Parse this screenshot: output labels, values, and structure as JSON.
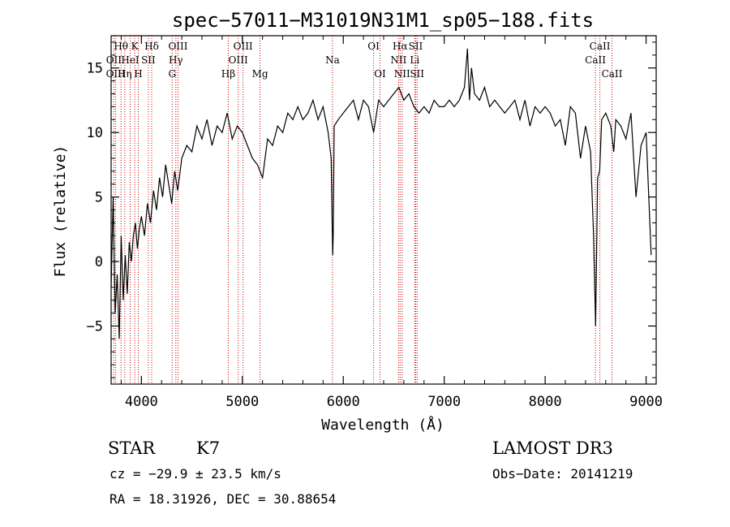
{
  "chart_data": {
    "type": "line",
    "title": "spec−57011−M31019N31M1_sp05−188.fits",
    "xlabel": "Wavelength (Å)",
    "ylabel": "Flux (relative)",
    "xlim": [
      3700,
      9100
    ],
    "ylim": [
      -9.5,
      17.5
    ],
    "x_ticks": [
      4000,
      5000,
      6000,
      7000,
      8000,
      9000
    ],
    "x_tick_labels": [
      "4000",
      "5000",
      "6000",
      "7000",
      "8000",
      "9000"
    ],
    "y_ticks": [
      -5,
      0,
      5,
      10,
      15
    ],
    "y_tick_labels": [
      "−5",
      "0",
      "5",
      "10",
      "15"
    ],
    "grid": false,
    "series": [
      {
        "name": "flux",
        "x": [
          3700,
          3720,
          3740,
          3760,
          3780,
          3800,
          3820,
          3840,
          3860,
          3880,
          3900,
          3920,
          3940,
          3960,
          3980,
          4000,
          4030,
          4060,
          4090,
          4120,
          4150,
          4180,
          4210,
          4240,
          4270,
          4300,
          4330,
          4360,
          4400,
          4450,
          4500,
          4550,
          4600,
          4650,
          4700,
          4750,
          4800,
          4850,
          4900,
          4950,
          5000,
          5050,
          5100,
          5150,
          5200,
          5250,
          5300,
          5350,
          5400,
          5450,
          5500,
          5550,
          5600,
          5650,
          5700,
          5750,
          5800,
          5850,
          5880,
          5890,
          5895,
          5900,
          5910,
          5950,
          6000,
          6050,
          6100,
          6150,
          6200,
          6250,
          6300,
          6350,
          6400,
          6450,
          6500,
          6550,
          6600,
          6650,
          6700,
          6750,
          6800,
          6850,
          6900,
          6950,
          7000,
          7050,
          7100,
          7150,
          7200,
          7230,
          7250,
          7270,
          7300,
          7350,
          7400,
          7450,
          7500,
          7550,
          7600,
          7650,
          7700,
          7750,
          7800,
          7850,
          7900,
          7950,
          8000,
          8050,
          8100,
          8150,
          8200,
          8250,
          8300,
          8350,
          8400,
          8450,
          8480,
          8500,
          8520,
          8540,
          8560,
          8600,
          8650,
          8680,
          8700,
          8750,
          8800,
          8850,
          8900,
          8950,
          9000,
          9050
        ],
        "values": [
          -2.0,
          5.0,
          -4.0,
          -1.0,
          -6.0,
          2.0,
          -3.0,
          0.5,
          -2.5,
          1.5,
          0.0,
          2.0,
          3.0,
          1.0,
          2.5,
          3.5,
          2.0,
          4.5,
          3.0,
          5.5,
          4.0,
          6.5,
          5.0,
          7.5,
          6.0,
          4.5,
          7.0,
          5.5,
          8.0,
          9.0,
          8.5,
          10.5,
          9.5,
          11.0,
          9.0,
          10.5,
          10.0,
          11.5,
          9.5,
          10.5,
          10.0,
          9.0,
          8.0,
          7.5,
          6.5,
          9.5,
          9.0,
          10.5,
          10.0,
          11.5,
          11.0,
          12.0,
          11.0,
          11.5,
          12.5,
          11.0,
          12.0,
          10.0,
          8.0,
          3.0,
          0.5,
          2.0,
          10.5,
          11.0,
          11.5,
          12.0,
          12.5,
          11.0,
          12.5,
          12.0,
          10.0,
          12.5,
          12.0,
          12.5,
          13.0,
          13.5,
          12.5,
          13.0,
          12.0,
          11.5,
          12.0,
          11.5,
          12.5,
          12.0,
          12.0,
          12.5,
          12.0,
          12.5,
          13.5,
          16.5,
          12.5,
          15.0,
          13.0,
          12.5,
          13.5,
          12.0,
          12.5,
          12.0,
          11.5,
          12.0,
          12.5,
          11.0,
          12.5,
          10.5,
          12.0,
          11.5,
          12.0,
          11.5,
          10.5,
          11.0,
          9.0,
          12.0,
          11.5,
          8.0,
          10.5,
          8.5,
          2.0,
          -5.0,
          6.5,
          7.0,
          11.0,
          11.5,
          10.5,
          8.5,
          11.0,
          10.5,
          9.5,
          11.5,
          5.0,
          9.0,
          10.0,
          0.5
        ]
      }
    ],
    "line_markers": [
      {
        "label": "Hθ",
        "x": 3798,
        "row": 1
      },
      {
        "label": "OII",
        "x": 3727,
        "row": 2
      },
      {
        "label": "OIII",
        "x": 3745,
        "row": 3
      },
      {
        "label": "Hη",
        "x": 3835,
        "row": 3
      },
      {
        "label": "HeI",
        "x": 3889,
        "row": 2
      },
      {
        "label": "K",
        "x": 3934,
        "row": 1
      },
      {
        "label": "SII",
        "x": 4069,
        "row": 2
      },
      {
        "label": "H",
        "x": 3969,
        "row": 3
      },
      {
        "label": "Hδ",
        "x": 4102,
        "row": 1
      },
      {
        "label": "OIII",
        "x": 4363,
        "row": 1
      },
      {
        "label": "Hγ",
        "x": 4341,
        "row": 2
      },
      {
        "label": "G",
        "x": 4305,
        "row": 3
      },
      {
        "label": "Hβ",
        "x": 4861,
        "row": 3
      },
      {
        "label": "OIII",
        "x": 5007,
        "row": 1
      },
      {
        "label": "OIII",
        "x": 4959,
        "row": 2
      },
      {
        "label": "Mg",
        "x": 5175,
        "row": 3
      },
      {
        "label": "Na",
        "x": 5893,
        "row": 2
      },
      {
        "label": "OI",
        "x": 6300,
        "row": 1
      },
      {
        "label": "OI",
        "x": 6364,
        "row": 3
      },
      {
        "label": "Hα",
        "x": 6563,
        "row": 1
      },
      {
        "label": "NII",
        "x": 6548,
        "row": 2
      },
      {
        "label": "NII",
        "x": 6583,
        "row": 3
      },
      {
        "label": "SII",
        "x": 6717,
        "row": 1
      },
      {
        "label": "Li",
        "x": 6708,
        "row": 2
      },
      {
        "label": "SII",
        "x": 6731,
        "row": 3
      },
      {
        "label": "CaII",
        "x": 8542,
        "row": 1
      },
      {
        "label": "CaII",
        "x": 8498,
        "row": 2
      },
      {
        "label": "CaII",
        "x": 8662,
        "row": 3
      }
    ]
  },
  "info": {
    "class": "STAR",
    "subclass": "K7",
    "survey": "LAMOST DR3",
    "cz": "cz = −29.9 ± 23.5 km/s",
    "obs_date": "Obs−Date: 20141219",
    "radec": "RA =  18.31926, DEC =  30.88654"
  },
  "colors": {
    "spectrum": "#000000",
    "marker": "#cc0000",
    "axes": "#000000"
  }
}
